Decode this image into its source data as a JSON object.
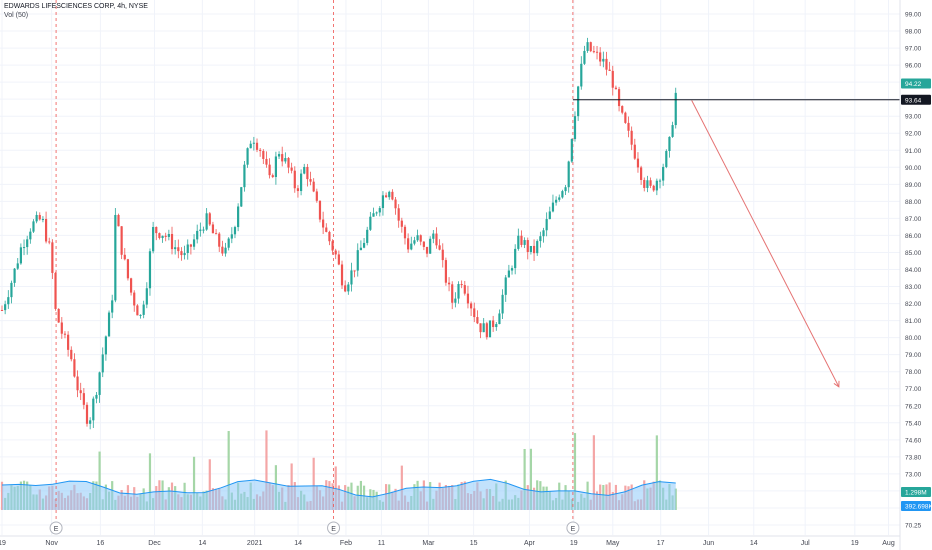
{
  "header": {
    "title": "EDWARDS LIFESCIENCES CORP, 4h, NYSE",
    "volume_label": "Vol (50)"
  },
  "colors": {
    "up": "#26a69a",
    "down": "#ef5350",
    "vol_up": "#a5d6a7",
    "vol_down": "#f4a6a6",
    "vol_ma_fill": "#90caf9",
    "vol_ma_line": "#2196f3",
    "earnings_line": "#ef5350",
    "level_line": "#131722",
    "forecast_arrow": "#e57373",
    "price_badge": "#26a69a",
    "level_badge": "#131722",
    "vol_badge": "#26a69a",
    "vol_ma_badge": "#2196f3"
  },
  "chart_data": {
    "type": "candlestick",
    "title": "EDWARDS LIFESCIENCES CORP, 4h, NYSE",
    "y_axis": {
      "ticks": [
        "99.00",
        "98.00",
        "97.00",
        "96.00",
        "95.00",
        "94.00",
        "93.00",
        "92.00",
        "91.00",
        "90.00",
        "89.00",
        "88.00",
        "87.00",
        "86.00",
        "85.00",
        "84.00",
        "83.00",
        "82.00",
        "81.00",
        "80.00",
        "79.00",
        "78.00",
        "77.00",
        "76.20",
        "75.40",
        "74.60",
        "73.80",
        "73.00",
        "72.30",
        "71.50",
        "70.25"
      ],
      "price_min": 78.0,
      "price_max": 99.0
    },
    "x_axis": {
      "ticks": [
        {
          "label": "19",
          "pos": 0.0
        },
        {
          "label": "Nov",
          "pos": 0.056
        },
        {
          "label": "16",
          "pos": 0.111
        },
        {
          "label": "Dec",
          "pos": 0.172
        },
        {
          "label": "14",
          "pos": 0.226
        },
        {
          "label": "2021",
          "pos": 0.285
        },
        {
          "label": "14",
          "pos": 0.334
        },
        {
          "label": "Feb",
          "pos": 0.388
        },
        {
          "label": "11",
          "pos": 0.428
        },
        {
          "label": "Mar",
          "pos": 0.481
        },
        {
          "label": "15",
          "pos": 0.532
        },
        {
          "label": "Apr",
          "pos": 0.595
        },
        {
          "label": "19",
          "pos": 0.645
        },
        {
          "label": "May",
          "pos": 0.689
        },
        {
          "label": "17",
          "pos": 0.743
        },
        {
          "label": "Jun",
          "pos": 0.797
        },
        {
          "label": "14",
          "pos": 0.848
        },
        {
          "label": "Jul",
          "pos": 0.906
        },
        {
          "label": "19",
          "pos": 0.962
        },
        {
          "label": "Aug",
          "pos": 1.0
        }
      ]
    },
    "close_path": [
      [
        0.0,
        80.5
      ],
      [
        0.012,
        82.5
      ],
      [
        0.022,
        84.5
      ],
      [
        0.033,
        85.8
      ],
      [
        0.045,
        86.2
      ],
      [
        0.055,
        84.0
      ],
      [
        0.06,
        80.5
      ],
      [
        0.068,
        79.0
      ],
      [
        0.078,
        77.5
      ],
      [
        0.088,
        75.0
      ],
      [
        0.098,
        73.5
      ],
      [
        0.108,
        76.0
      ],
      [
        0.116,
        78.5
      ],
      [
        0.124,
        81.0
      ],
      [
        0.128,
        86.5
      ],
      [
        0.136,
        84.0
      ],
      [
        0.146,
        81.5
      ],
      [
        0.156,
        80.0
      ],
      [
        0.164,
        82.5
      ],
      [
        0.17,
        85.5
      ],
      [
        0.182,
        85.3
      ],
      [
        0.194,
        84.5
      ],
      [
        0.206,
        83.8
      ],
      [
        0.218,
        85.0
      ],
      [
        0.23,
        86.2
      ],
      [
        0.242,
        84.8
      ],
      [
        0.252,
        84.0
      ],
      [
        0.262,
        85.8
      ],
      [
        0.272,
        89.0
      ],
      [
        0.282,
        91.5
      ],
      [
        0.292,
        90.5
      ],
      [
        0.302,
        88.5
      ],
      [
        0.312,
        90.5
      ],
      [
        0.322,
        89.5
      ],
      [
        0.332,
        88.0
      ],
      [
        0.342,
        89.5
      ],
      [
        0.352,
        87.5
      ],
      [
        0.364,
        85.5
      ],
      [
        0.376,
        84.0
      ],
      [
        0.386,
        82.0
      ],
      [
        0.396,
        83.0
      ],
      [
        0.406,
        84.5
      ],
      [
        0.416,
        86.0
      ],
      [
        0.428,
        87.5
      ],
      [
        0.438,
        88.3
      ],
      [
        0.448,
        86.0
      ],
      [
        0.458,
        84.5
      ],
      [
        0.468,
        85.0
      ],
      [
        0.478,
        84.0
      ],
      [
        0.488,
        85.5
      ],
      [
        0.498,
        83.0
      ],
      [
        0.508,
        81.0
      ],
      [
        0.518,
        82.5
      ],
      [
        0.528,
        81.0
      ],
      [
        0.538,
        79.5
      ],
      [
        0.548,
        79.2
      ],
      [
        0.558,
        80.0
      ],
      [
        0.57,
        82.5
      ],
      [
        0.584,
        85.0
      ],
      [
        0.598,
        84.0
      ],
      [
        0.608,
        85.0
      ],
      [
        0.618,
        86.5
      ],
      [
        0.628,
        87.8
      ],
      [
        0.636,
        88.5
      ],
      [
        0.644,
        92.0
      ],
      [
        0.65,
        94.5
      ],
      [
        0.658,
        97.0
      ],
      [
        0.668,
        96.5
      ],
      [
        0.678,
        96.0
      ],
      [
        0.688,
        95.0
      ],
      [
        0.696,
        93.0
      ],
      [
        0.706,
        91.5
      ],
      [
        0.716,
        90.0
      ],
      [
        0.724,
        88.5
      ],
      [
        0.732,
        88.0
      ],
      [
        0.742,
        89.0
      ],
      [
        0.752,
        90.5
      ],
      [
        0.76,
        94.0
      ]
    ],
    "last_price": "94.22",
    "horizontal_level": {
      "value": 93.64,
      "label": "93.64"
    },
    "forecast_arrow": {
      "from": [
        0.778,
        93.6
      ],
      "to": [
        0.944,
        75.7
      ]
    },
    "earnings_markers": [
      0.061,
      0.374,
      0.644
    ],
    "earnings_label": "E",
    "volume": {
      "current_label": "1.298M",
      "ma_label": "392.698K"
    }
  }
}
